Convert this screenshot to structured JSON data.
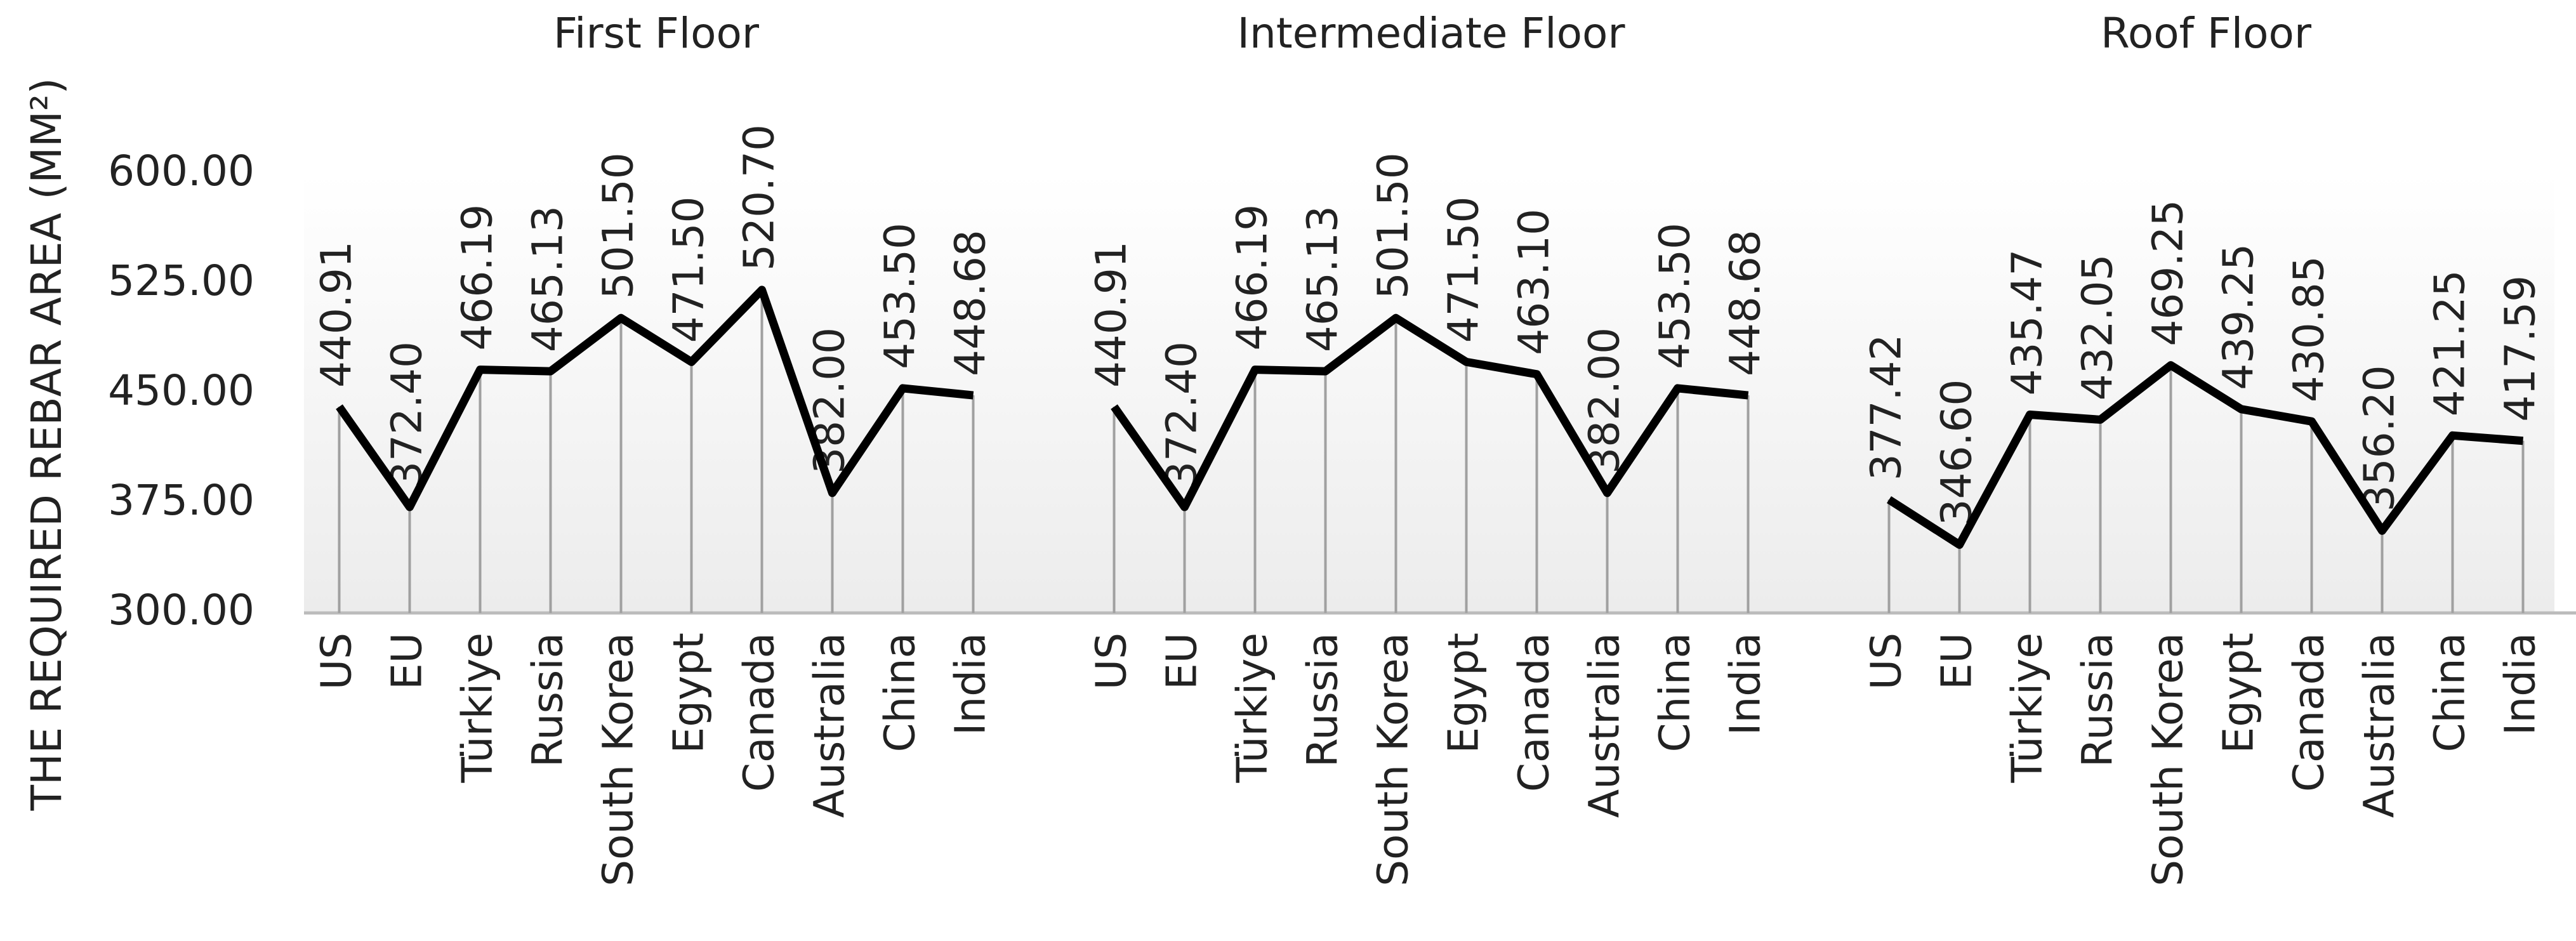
{
  "chart_data": {
    "type": "line",
    "ylabel": "THE REQUIRED REBAR AREA (MM²)",
    "categories": [
      "US",
      "EU",
      "Türkiye",
      "Russia",
      "South Korea",
      "Egypt",
      "Canada",
      "Australia",
      "China",
      "India"
    ],
    "series": [
      {
        "name": "First Floor",
        "color": "#000000",
        "values": [
          440.91,
          372.4,
          466.19,
          465.13,
          501.5,
          471.5,
          520.7,
          382,
          453.5,
          448.68
        ],
        "value_labels": [
          "440.91",
          "372.40",
          "466.19",
          "465.13",
          "501.50",
          "471.50",
          "520.70",
          "382.00",
          "453.50",
          "448.68"
        ]
      },
      {
        "name": "Intermediate Floor",
        "color": "#000000",
        "values": [
          440.91,
          372.4,
          466.19,
          465.13,
          501.5,
          471.5,
          463.1,
          382,
          453.5,
          448.68
        ],
        "value_labels": [
          "440.91",
          "372.40",
          "466.19",
          "465.13",
          "501.50",
          "471.50",
          "463.10",
          "382.00",
          "453.50",
          "448.68"
        ]
      },
      {
        "name": "Roof Floor",
        "color": "#000000",
        "values": [
          377.42,
          346.6,
          435.47,
          432.05,
          469.25,
          439.25,
          430.85,
          356.2,
          421.25,
          417.59
        ],
        "value_labels": [
          "377.42",
          "346.60",
          "435.47",
          "432.05",
          "469.25",
          "439.25",
          "430.85",
          "356.20",
          "421.25",
          "417.59"
        ]
      }
    ],
    "ylim": [
      300,
      600
    ],
    "yticks": [
      {
        "value": 300,
        "label": "300.00"
      },
      {
        "value": 375,
        "label": "375.00"
      },
      {
        "value": 450,
        "label": "450.00"
      },
      {
        "value": 525,
        "label": "525.00"
      },
      {
        "value": 600,
        "label": "600.00"
      }
    ],
    "drop_lines": true
  }
}
